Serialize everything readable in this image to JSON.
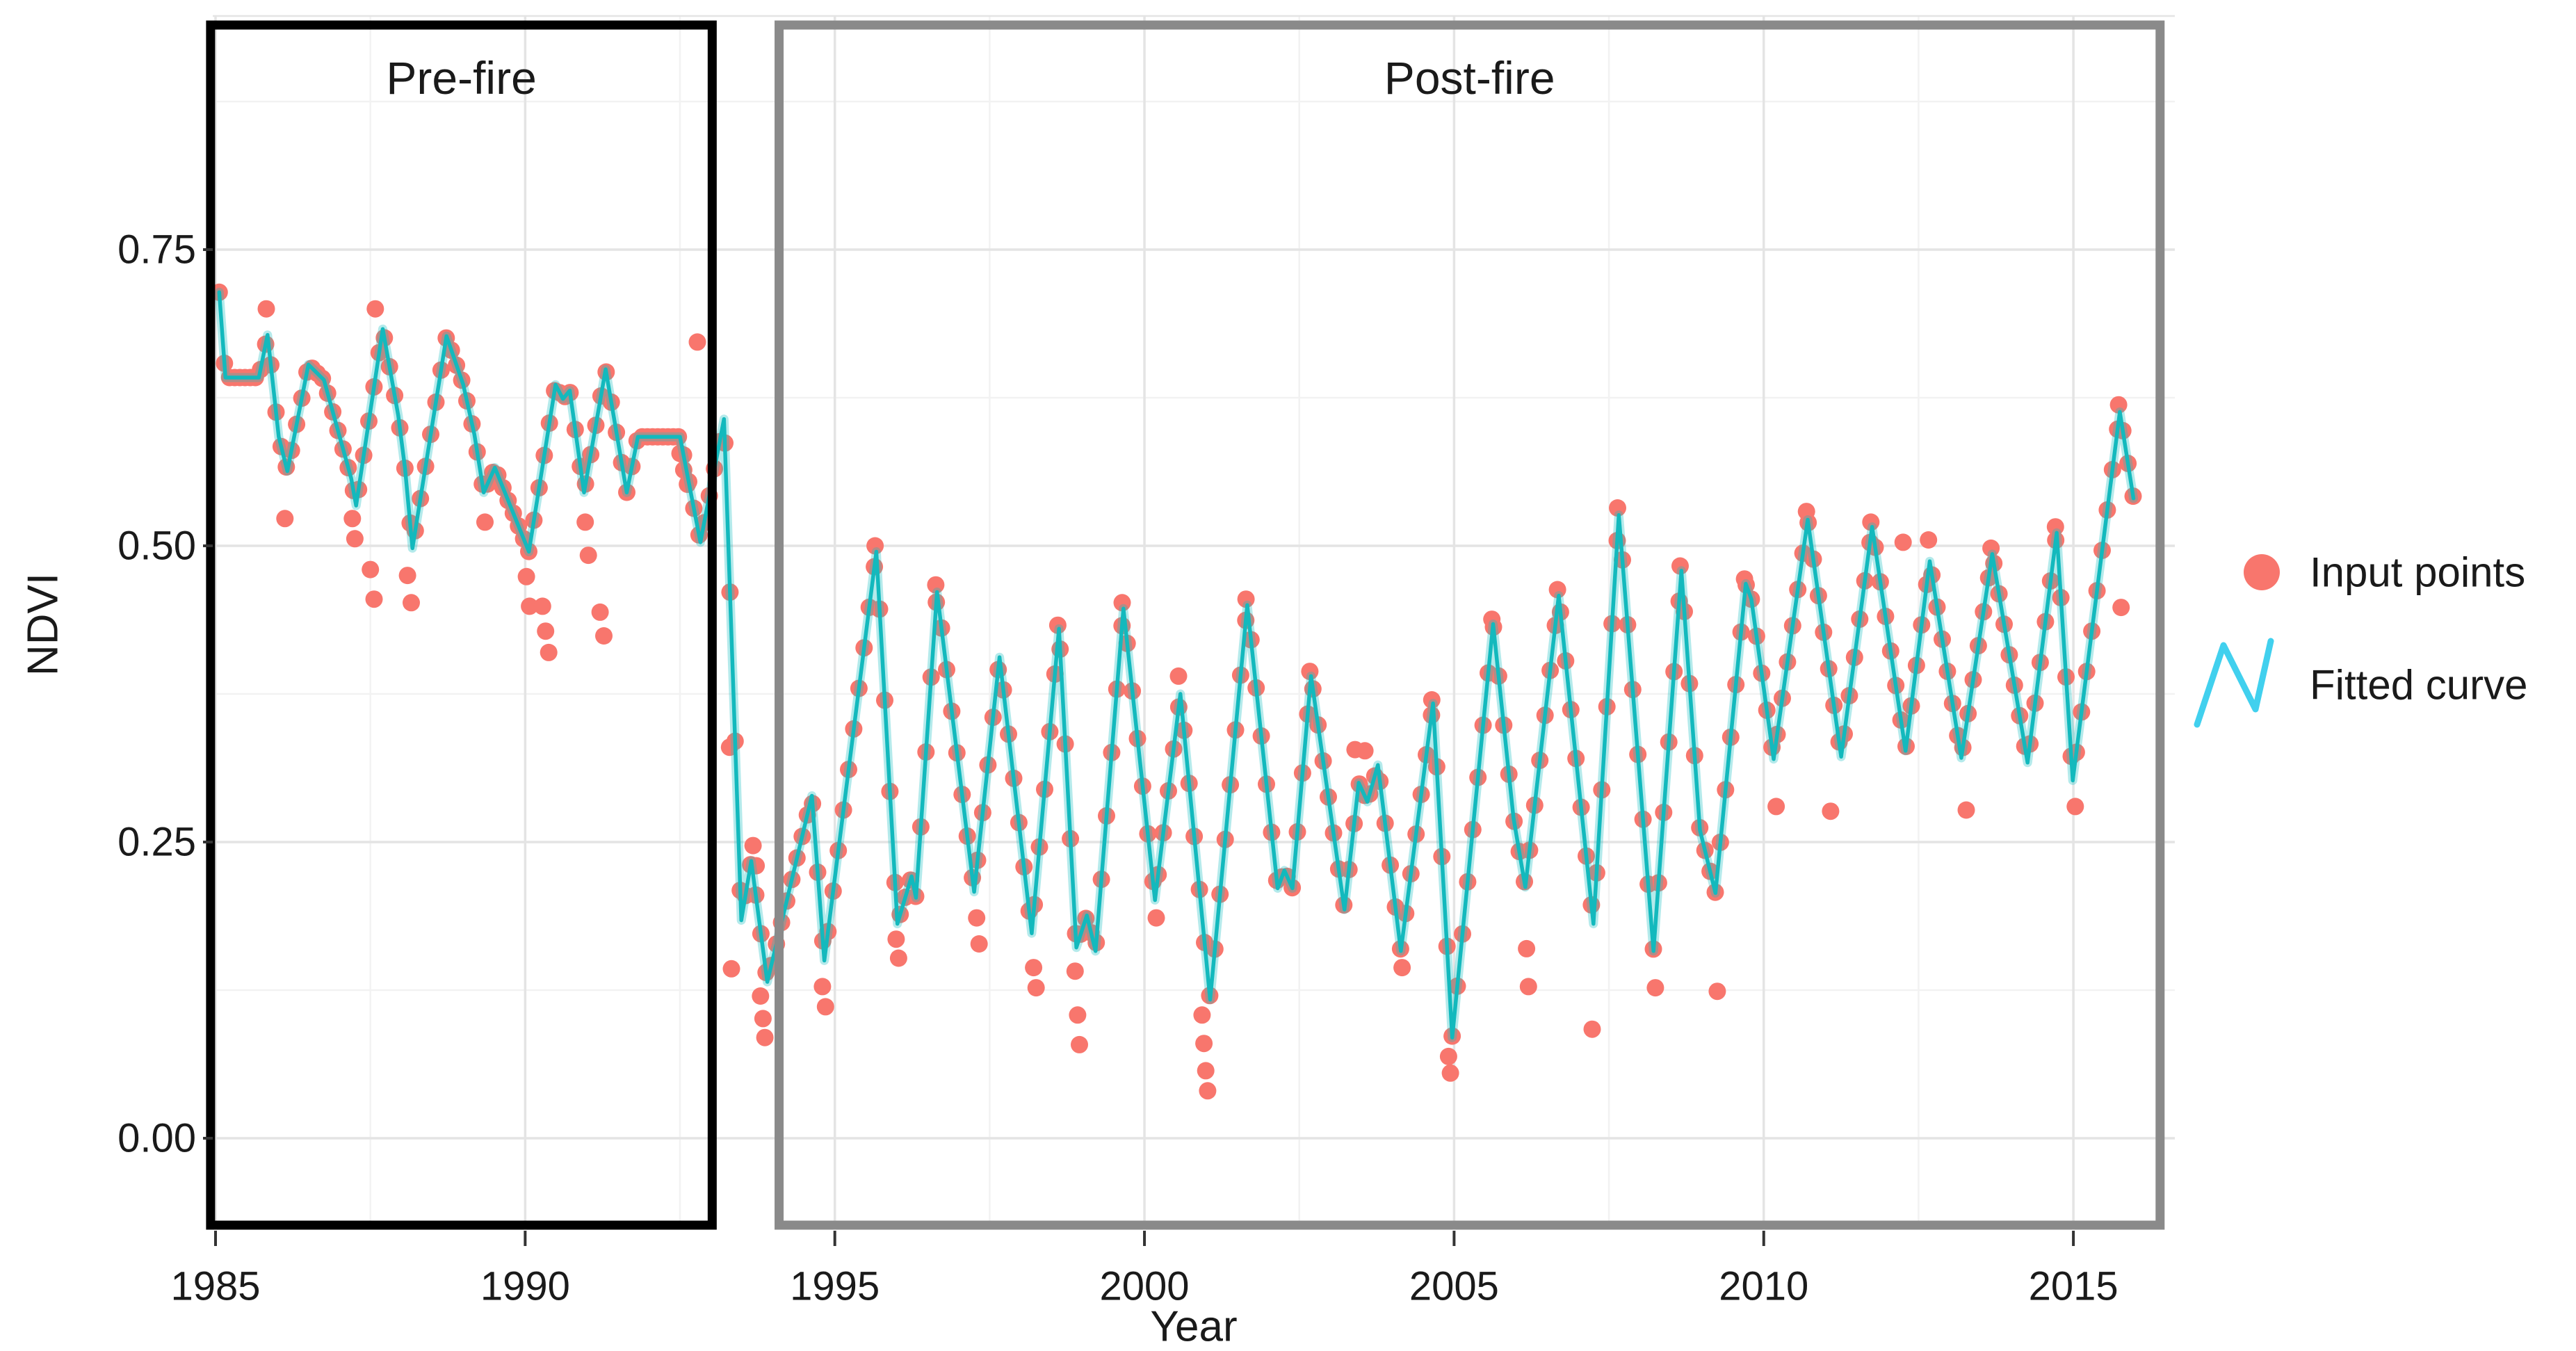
{
  "chart_data": {
    "type": "line+scatter",
    "title": "",
    "xlabel": "Year",
    "ylabel": "NDVI",
    "xlim": [
      1984.95,
      2016.64
    ],
    "ylim": [
      -0.074,
      0.947
    ],
    "grid": {
      "major": true,
      "minor": true,
      "x_major_step_years": 5,
      "y_major_step": 0.25
    },
    "x_ticks": [
      {
        "value": 1985,
        "label": "1985"
      },
      {
        "value": 1990,
        "label": "1990"
      },
      {
        "value": 1995,
        "label": "1995"
      },
      {
        "value": 2000,
        "label": "2000"
      },
      {
        "value": 2005,
        "label": "2005"
      },
      {
        "value": 2010,
        "label": "2010"
      },
      {
        "value": 2015,
        "label": "2015"
      }
    ],
    "y_ticks": [
      {
        "value": 0.0,
        "label": "0.00"
      },
      {
        "value": 0.25,
        "label": "0.25"
      },
      {
        "value": 0.5,
        "label": "0.50"
      },
      {
        "value": 0.75,
        "label": "0.75"
      }
    ],
    "annotation_boxes": [
      {
        "label": "Pre-fire",
        "x_from_year": 1984.92,
        "x_to_year": 1993.02,
        "color": "#000000"
      },
      {
        "label": "Post-fire",
        "x_from_year": 1994.1,
        "x_to_year": 2016.4,
        "color": "#8A8A8A"
      }
    ],
    "legend": [
      {
        "label": "Input points",
        "type": "point",
        "color": "#F8766D"
      },
      {
        "label": "Fitted curve",
        "type": "line",
        "color": "#41D0EE"
      }
    ],
    "series": [
      {
        "name": "Fitted curve",
        "type": "line",
        "color": "#13B9BD",
        "points": [
          [
            1985.06,
            0.714
          ],
          [
            1985.16,
            0.642
          ],
          [
            1985.7,
            0.642
          ],
          [
            1985.84,
            0.678
          ],
          [
            1986.02,
            0.592
          ],
          [
            1986.16,
            0.563
          ],
          [
            1986.5,
            0.653
          ],
          [
            1986.75,
            0.64
          ],
          [
            1987.19,
            0.557
          ],
          [
            1987.27,
            0.534
          ],
          [
            1987.7,
            0.683
          ],
          [
            1987.95,
            0.61
          ],
          [
            1988.06,
            0.565
          ],
          [
            1988.18,
            0.498
          ],
          [
            1988.73,
            0.677
          ],
          [
            1989.0,
            0.636
          ],
          [
            1989.18,
            0.594
          ],
          [
            1989.33,
            0.545
          ],
          [
            1989.51,
            0.566
          ],
          [
            1990.06,
            0.495
          ],
          [
            1990.49,
            0.636
          ],
          [
            1990.61,
            0.624
          ],
          [
            1990.72,
            0.631
          ],
          [
            1990.95,
            0.545
          ],
          [
            1991.3,
            0.649
          ],
          [
            1991.64,
            0.545
          ],
          [
            1991.82,
            0.592
          ],
          [
            1992.5,
            0.592
          ],
          [
            1992.83,
            0.503
          ],
          [
            1993.21,
            0.607
          ],
          [
            1993.49,
            0.184
          ],
          [
            1993.65,
            0.234
          ],
          [
            1993.91,
            0.132
          ],
          [
            1994.63,
            0.289
          ],
          [
            1994.83,
            0.15
          ],
          [
            1995.67,
            0.495
          ],
          [
            1996.01,
            0.181
          ],
          [
            1996.24,
            0.221
          ],
          [
            1996.31,
            0.203
          ],
          [
            1996.65,
            0.461
          ],
          [
            1997.25,
            0.208
          ],
          [
            1997.66,
            0.406
          ],
          [
            1998.18,
            0.173
          ],
          [
            1998.62,
            0.43
          ],
          [
            1998.9,
            0.161
          ],
          [
            1999.07,
            0.188
          ],
          [
            1999.21,
            0.158
          ],
          [
            1999.66,
            0.447
          ],
          [
            2000.17,
            0.201
          ],
          [
            2000.58,
            0.375
          ],
          [
            2001.06,
            0.117
          ],
          [
            2001.66,
            0.45
          ],
          [
            2002.15,
            0.211
          ],
          [
            2002.26,
            0.226
          ],
          [
            2002.39,
            0.211
          ],
          [
            2002.69,
            0.39
          ],
          [
            2003.23,
            0.193
          ],
          [
            2003.46,
            0.3
          ],
          [
            2003.6,
            0.284
          ],
          [
            2003.77,
            0.315
          ],
          [
            2004.14,
            0.158
          ],
          [
            2004.66,
            0.367
          ],
          [
            2004.97,
            0.085
          ],
          [
            2005.63,
            0.434
          ],
          [
            2005.96,
            0.27
          ],
          [
            2006.15,
            0.212
          ],
          [
            2006.69,
            0.458
          ],
          [
            2007.25,
            0.181
          ],
          [
            2007.66,
            0.526
          ],
          [
            2008.22,
            0.158
          ],
          [
            2008.67,
            0.479
          ],
          [
            2008.97,
            0.26
          ],
          [
            2009.22,
            0.207
          ],
          [
            2009.71,
            0.468
          ],
          [
            2009.8,
            0.455
          ],
          [
            2010.16,
            0.32
          ],
          [
            2010.71,
            0.522
          ],
          [
            2011.25,
            0.322
          ],
          [
            2011.75,
            0.516
          ],
          [
            2012.29,
            0.327
          ],
          [
            2012.68,
            0.487
          ],
          [
            2013.19,
            0.321
          ],
          [
            2013.69,
            0.493
          ],
          [
            2014.26,
            0.317
          ],
          [
            2014.73,
            0.511
          ],
          [
            2014.99,
            0.302
          ],
          [
            2015.75,
            0.613
          ],
          [
            2015.97,
            0.54
          ]
        ]
      },
      {
        "name": "Input points",
        "type": "scatter",
        "color": "#F8766D",
        "points_follow_curve": true,
        "sample_step_years": 0.0833,
        "outliers": [
          [
            1985.82,
            0.7
          ],
          [
            1986.12,
            0.523
          ],
          [
            1987.21,
            0.523
          ],
          [
            1987.25,
            0.506
          ],
          [
            1987.5,
            0.48
          ],
          [
            1987.56,
            0.455
          ],
          [
            1987.58,
            0.7
          ],
          [
            1988.1,
            0.475
          ],
          [
            1988.16,
            0.452
          ],
          [
            1989.35,
            0.52
          ],
          [
            1990.02,
            0.474
          ],
          [
            1990.07,
            0.449
          ],
          [
            1990.28,
            0.449
          ],
          [
            1990.33,
            0.428
          ],
          [
            1990.38,
            0.41
          ],
          [
            1990.97,
            0.52
          ],
          [
            1991.02,
            0.492
          ],
          [
            1991.21,
            0.444
          ],
          [
            1991.27,
            0.424
          ],
          [
            1992.5,
            0.578
          ],
          [
            1992.56,
            0.564
          ],
          [
            1992.62,
            0.552
          ],
          [
            1992.78,
            0.672
          ],
          [
            1993.3,
            0.33
          ],
          [
            1993.33,
            0.143
          ],
          [
            1993.68,
            0.247
          ],
          [
            1993.73,
            0.23
          ],
          [
            1993.8,
            0.12
          ],
          [
            1993.84,
            0.101
          ],
          [
            1993.87,
            0.085
          ],
          [
            1994.8,
            0.128
          ],
          [
            1994.85,
            0.111
          ],
          [
            1995.65,
            0.5
          ],
          [
            1995.99,
            0.168
          ],
          [
            1996.03,
            0.152
          ],
          [
            1996.63,
            0.467
          ],
          [
            1997.29,
            0.186
          ],
          [
            1997.33,
            0.164
          ],
          [
            1998.21,
            0.144
          ],
          [
            1998.25,
            0.127
          ],
          [
            1998.6,
            0.433
          ],
          [
            1998.88,
            0.141
          ],
          [
            1998.92,
            0.104
          ],
          [
            1998.95,
            0.079
          ],
          [
            1999.64,
            0.452
          ],
          [
            2000.19,
            0.186
          ],
          [
            2000.55,
            0.39
          ],
          [
            2000.93,
            0.104
          ],
          [
            2000.96,
            0.08
          ],
          [
            2000.99,
            0.057
          ],
          [
            2001.02,
            0.04
          ],
          [
            2001.64,
            0.455
          ],
          [
            2002.67,
            0.394
          ],
          [
            2003.4,
            0.328
          ],
          [
            2003.56,
            0.327
          ],
          [
            2004.16,
            0.144
          ],
          [
            2004.64,
            0.37
          ],
          [
            2004.91,
            0.069
          ],
          [
            2004.94,
            0.055
          ],
          [
            2005.61,
            0.438
          ],
          [
            2006.17,
            0.16
          ],
          [
            2006.2,
            0.128
          ],
          [
            2006.67,
            0.463
          ],
          [
            2007.23,
            0.092
          ],
          [
            2007.64,
            0.532
          ],
          [
            2008.25,
            0.127
          ],
          [
            2008.65,
            0.483
          ],
          [
            2009.25,
            0.124
          ],
          [
            2009.69,
            0.472
          ],
          [
            2010.2,
            0.28
          ],
          [
            2010.69,
            0.529
          ],
          [
            2011.08,
            0.276
          ],
          [
            2011.73,
            0.52
          ],
          [
            2012.25,
            0.503
          ],
          [
            2012.66,
            0.505
          ],
          [
            2013.27,
            0.277
          ],
          [
            2013.67,
            0.498
          ],
          [
            2014.71,
            0.516
          ],
          [
            2015.03,
            0.28
          ],
          [
            2015.73,
            0.619
          ],
          [
            2015.77,
            0.448
          ]
        ]
      }
    ],
    "colors": {
      "point": "#F8766D",
      "curve_core": "#13B9BD",
      "curve_halo": "rgba(23,190,193,0.32)",
      "legend_line": "#41D0EE",
      "grid_major": "#E4E4E4",
      "grid_minor": "#F2F2F2",
      "tick": "#333333",
      "prefire_box": "#000000",
      "postfire_box": "#8A8A8A"
    }
  }
}
